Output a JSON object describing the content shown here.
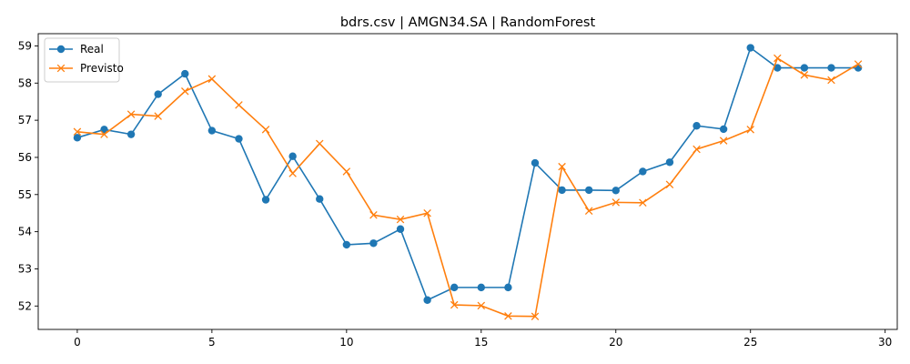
{
  "chart_data": {
    "type": "line",
    "title": "bdrs.csv | AMGN34.SA | RandomForest",
    "xlabel": "",
    "ylabel": "",
    "xlim": [
      -1.45,
      30.45
    ],
    "ylim": [
      51.37,
      59.33
    ],
    "xticks": [
      0,
      5,
      10,
      15,
      20,
      25,
      30
    ],
    "yticks": [
      52,
      53,
      54,
      55,
      56,
      57,
      58,
      59
    ],
    "grid": false,
    "legend_position": "top-left",
    "x": [
      0,
      1,
      2,
      3,
      4,
      5,
      6,
      7,
      8,
      9,
      10,
      11,
      12,
      13,
      14,
      15,
      16,
      17,
      18,
      19,
      20,
      21,
      22,
      23,
      24,
      25,
      26,
      27,
      28,
      29
    ],
    "series": [
      {
        "name": "Real",
        "color": "#1f77b4",
        "marker": "circle",
        "values": [
          56.53,
          56.75,
          56.62,
          57.7,
          58.25,
          56.72,
          56.5,
          54.86,
          56.03,
          54.88,
          53.65,
          53.69,
          54.07,
          52.16,
          52.5,
          52.5,
          52.5,
          55.85,
          55.12,
          55.12,
          55.11,
          55.62,
          55.87,
          56.85,
          56.76,
          58.95,
          58.41,
          58.41,
          58.41,
          58.41
        ]
      },
      {
        "name": "Previsto",
        "color": "#ff7f0e",
        "marker": "x",
        "values": [
          56.69,
          56.62,
          57.16,
          57.11,
          57.78,
          58.11,
          57.41,
          56.75,
          55.57,
          56.37,
          55.62,
          54.45,
          54.33,
          54.5,
          52.03,
          52.01,
          51.73,
          51.72,
          55.75,
          54.56,
          54.79,
          54.78,
          55.27,
          56.22,
          56.45,
          56.75,
          58.67,
          58.22,
          58.08,
          58.51
        ]
      }
    ]
  }
}
